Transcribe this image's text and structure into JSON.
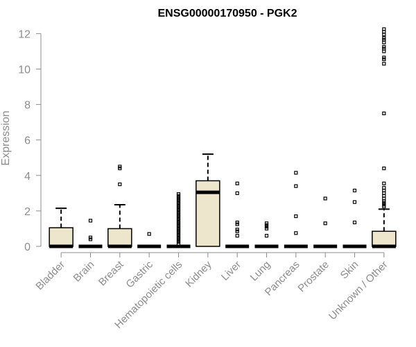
{
  "chart_data": {
    "type": "boxplot",
    "title": "ENSG00000170950 - PGK2",
    "xlabel": "",
    "ylabel": "Expression",
    "ylim": [
      0,
      12.3
    ],
    "yticks": [
      0,
      2,
      4,
      6,
      8,
      10,
      12
    ],
    "box_fill": "#ede6cc",
    "box_stroke": "#000000",
    "axis_color": "#8c8c8c",
    "grid": false,
    "groups": [
      {
        "label": "Bladder",
        "q1": 0,
        "median": 0,
        "q3": 1.05,
        "whisker_low": 0,
        "whisker_high": 2.15,
        "outliers": []
      },
      {
        "label": "Brain",
        "q1": 0,
        "median": 0,
        "q3": 0,
        "whisker_low": 0,
        "whisker_high": 0,
        "outliers": [
          0.4,
          0.5,
          1.45
        ]
      },
      {
        "label": "Breast",
        "q1": 0,
        "median": 0,
        "q3": 1.0,
        "whisker_low": 0,
        "whisker_high": 2.35,
        "outliers": [
          3.5,
          4.4,
          4.5
        ]
      },
      {
        "label": "Gastric",
        "q1": 0,
        "median": 0,
        "q3": 0,
        "whisker_low": 0,
        "whisker_high": 0,
        "outliers": [
          0.7
        ]
      },
      {
        "label": "Hematopoietic cells",
        "q1": 0,
        "median": 0,
        "q3": 0,
        "whisker_low": 0,
        "whisker_high": 0,
        "outliers": [
          0.15,
          0.25,
          0.35,
          0.45,
          0.55,
          0.65,
          0.75,
          0.85,
          0.95,
          1.05,
          1.15,
          1.25,
          1.35,
          1.45,
          1.55,
          1.65,
          1.75,
          1.85,
          1.95,
          2.05,
          2.15,
          2.25,
          2.35,
          2.45,
          2.55,
          2.65,
          2.75,
          2.85,
          2.95
        ]
      },
      {
        "label": "Kidney",
        "q1": 0,
        "median": 3.05,
        "q3": 3.7,
        "whisker_low": 0,
        "whisker_high": 5.2,
        "outliers": []
      },
      {
        "label": "Liver",
        "q1": 0,
        "median": 0,
        "q3": 0,
        "whisker_low": 0,
        "whisker_high": 0,
        "outliers": [
          0.6,
          0.85,
          0.95,
          1.25,
          1.35,
          3.0,
          3.55
        ]
      },
      {
        "label": "Lung",
        "q1": 0,
        "median": 0,
        "q3": 0,
        "whisker_low": 0,
        "whisker_high": 0,
        "outliers": [
          0.6,
          1.0,
          1.1,
          1.2,
          1.3
        ]
      },
      {
        "label": "Pancreas",
        "q1": 0,
        "median": 0,
        "q3": 0,
        "whisker_low": 0,
        "whisker_high": 0,
        "outliers": [
          0.75,
          1.7,
          3.4,
          4.15
        ]
      },
      {
        "label": "Prostate",
        "q1": 0,
        "median": 0,
        "q3": 0,
        "whisker_low": 0,
        "whisker_high": 0,
        "outliers": [
          1.3,
          2.7
        ]
      },
      {
        "label": "Skin",
        "q1": 0,
        "median": 0,
        "q3": 0,
        "whisker_low": 0,
        "whisker_high": 0,
        "outliers": [
          1.35,
          2.5,
          3.15
        ]
      },
      {
        "label": "Unknown / Other",
        "q1": 0,
        "median": 0,
        "q3": 0.85,
        "whisker_low": 0,
        "whisker_high": 2.1,
        "outliers": [
          2.25,
          2.35,
          2.45,
          2.55,
          2.7,
          2.85,
          3.0,
          3.15,
          3.3,
          3.55,
          4.4,
          7.5,
          10.3,
          10.55,
          10.65,
          11.0,
          11.15,
          11.25,
          11.5,
          11.65,
          11.75,
          11.95,
          12.1,
          12.25
        ]
      }
    ]
  }
}
